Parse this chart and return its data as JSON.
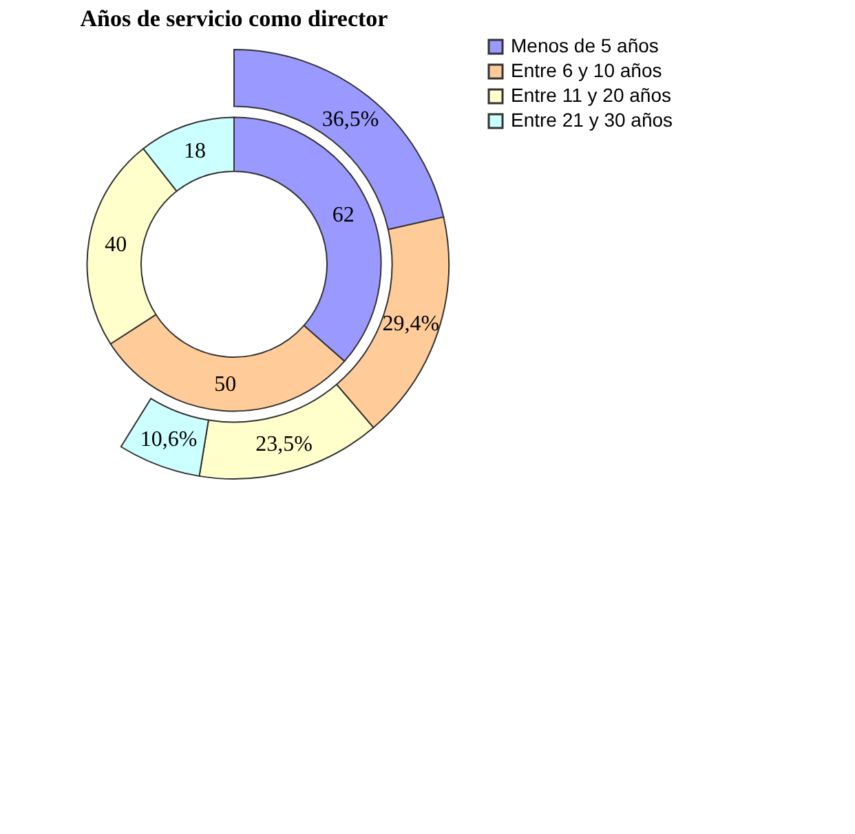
{
  "chart_data": {
    "type": "donut",
    "title": "Años de servicio como director",
    "categories": [
      "Menos de 5 años",
      "Entre 6 y 10 años",
      "Entre 11 y 20 años",
      "Entre 21 y 30 años"
    ],
    "colors": [
      "#9999ff",
      "#ffcc99",
      "#ffffcc",
      "#ccffff"
    ],
    "series": [
      {
        "values": [
          62,
          50,
          40,
          18
        ]
      },
      {
        "values": [
          36.5,
          29.4,
          23.5,
          10.6
        ],
        "value_labels": [
          "36,5%",
          "29,4%",
          "23,5%",
          "10,6%"
        ]
      }
    ],
    "data_labels": true,
    "legend": "right"
  }
}
